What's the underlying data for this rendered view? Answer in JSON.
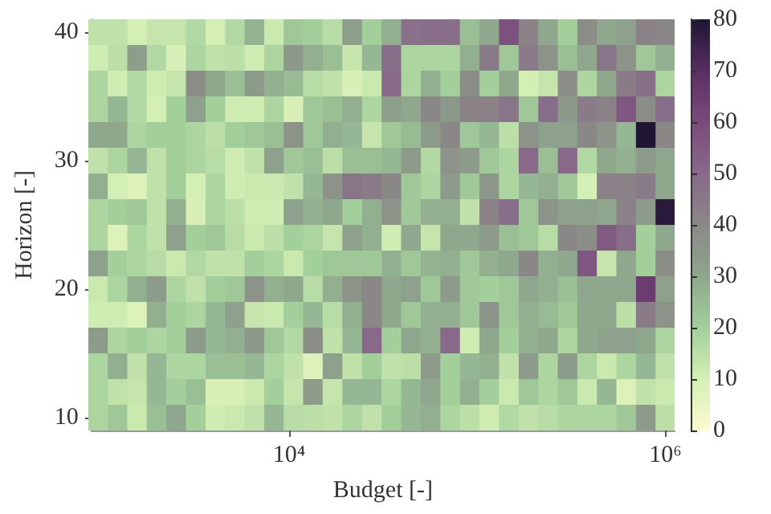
{
  "chart_data": {
    "type": "heatmap",
    "xlabel": "Budget [-]",
    "ylabel": "Horizon [-]",
    "log": "x",
    "xlim": [
      890,
      1120000
    ],
    "xticks": [
      {
        "value": 10000,
        "label": "10⁴"
      },
      {
        "value": 1000000,
        "label": "10⁶"
      }
    ],
    "ylim": [
      9,
      41
    ],
    "yticks": [
      10,
      20,
      30,
      40
    ],
    "clim": [
      0,
      80
    ],
    "cticks": [
      0,
      10,
      20,
      30,
      40,
      50,
      60,
      70,
      80
    ],
    "colors": [
      "#fdfccf",
      "#d4efb4",
      "#a3cf9b",
      "#8ea78d",
      "#8a8886",
      "#88698a",
      "#7a4b7a",
      "#5a2d63",
      "#1e1633"
    ],
    "x": [
      1000,
      1270,
      1610,
      2040,
      2590,
      3290,
      4180,
      5300,
      6720,
      8530,
      10800,
      13700,
      17400,
      22100,
      28100,
      35600,
      45200,
      57400,
      72800,
      92400,
      117000,
      149000,
      189000,
      240000,
      304000,
      386000,
      489000,
      621000,
      788000,
      1000000
    ],
    "y": [
      40,
      38,
      36,
      34,
      32,
      30,
      28,
      26,
      24,
      22,
      20,
      18,
      16,
      14,
      12,
      10
    ],
    "cells": [
      [
        14,
        14,
        10,
        13,
        13,
        17,
        10,
        17,
        27,
        12,
        22,
        20,
        16,
        33,
        20,
        28,
        47,
        48,
        48,
        24,
        30,
        58,
        42,
        30,
        20,
        38,
        30,
        32,
        42,
        40
      ],
      [
        11,
        15,
        33,
        17,
        9,
        18,
        14,
        15,
        11,
        18,
        35,
        28,
        24,
        13,
        26,
        48,
        18,
        18,
        18,
        28,
        44,
        22,
        44,
        36,
        24,
        30,
        46,
        36,
        22,
        28
      ],
      [
        18,
        11,
        17,
        11,
        13,
        38,
        30,
        24,
        34,
        28,
        25,
        16,
        14,
        9,
        12,
        50,
        18,
        28,
        20,
        38,
        20,
        30,
        10,
        13,
        38,
        18,
        30,
        44,
        48,
        18
      ],
      [
        18,
        26,
        17,
        10,
        20,
        32,
        20,
        11,
        11,
        18,
        9,
        22,
        24,
        28,
        18,
        33,
        30,
        40,
        35,
        42,
        42,
        46,
        22,
        48,
        35,
        44,
        42,
        56,
        38,
        48
      ],
      [
        30,
        30,
        18,
        20,
        20,
        18,
        15,
        20,
        22,
        24,
        36,
        22,
        28,
        26,
        13,
        22,
        25,
        34,
        40,
        22,
        26,
        15,
        36,
        32,
        32,
        40,
        36,
        26,
        80,
        40
      ],
      [
        14,
        18,
        26,
        14,
        20,
        18,
        16,
        11,
        14,
        32,
        22,
        24,
        15,
        24,
        24,
        26,
        34,
        17,
        36,
        34,
        22,
        18,
        50,
        24,
        50,
        17,
        30,
        28,
        34,
        30
      ],
      [
        28,
        10,
        8,
        14,
        20,
        10,
        18,
        11,
        12,
        12,
        14,
        26,
        36,
        46,
        44,
        40,
        22,
        18,
        34,
        22,
        35,
        18,
        26,
        28,
        22,
        10,
        42,
        42,
        44,
        30
      ],
      [
        18,
        20,
        22,
        14,
        28,
        9,
        18,
        15,
        11,
        11,
        32,
        28,
        30,
        20,
        28,
        36,
        22,
        28,
        28,
        14,
        42,
        48,
        22,
        36,
        32,
        32,
        30,
        42,
        34,
        78
      ],
      [
        18,
        8,
        18,
        14,
        32,
        20,
        22,
        16,
        12,
        15,
        20,
        18,
        13,
        32,
        28,
        11,
        30,
        13,
        30,
        30,
        34,
        24,
        22,
        16,
        40,
        38,
        55,
        48,
        20,
        30
      ],
      [
        32,
        20,
        18,
        16,
        12,
        17,
        14,
        14,
        20,
        18,
        12,
        20,
        22,
        22,
        22,
        28,
        22,
        27,
        28,
        22,
        28,
        30,
        40,
        28,
        30,
        56,
        13,
        30,
        20,
        38
      ],
      [
        12,
        18,
        28,
        34,
        18,
        14,
        20,
        22,
        36,
        28,
        30,
        16,
        28,
        36,
        40,
        30,
        32,
        22,
        34,
        22,
        20,
        22,
        30,
        28,
        24,
        30,
        30,
        30,
        65,
        32
      ],
      [
        11,
        11,
        8,
        28,
        20,
        18,
        26,
        32,
        13,
        12,
        20,
        26,
        16,
        28,
        40,
        30,
        22,
        28,
        28,
        22,
        36,
        22,
        28,
        25,
        22,
        30,
        30,
        15,
        44,
        36
      ],
      [
        34,
        18,
        20,
        18,
        20,
        34,
        26,
        28,
        35,
        22,
        17,
        38,
        14,
        26,
        50,
        20,
        30,
        28,
        50,
        11,
        30,
        20,
        28,
        30,
        18,
        30,
        32,
        32,
        30,
        18
      ],
      [
        18,
        28,
        14,
        26,
        18,
        18,
        24,
        24,
        26,
        18,
        14,
        8,
        32,
        14,
        20,
        14,
        15,
        34,
        20,
        26,
        28,
        14,
        34,
        18,
        34,
        18,
        12,
        18,
        26,
        14
      ],
      [
        18,
        14,
        13,
        26,
        20,
        24,
        9,
        9,
        12,
        20,
        13,
        34,
        13,
        26,
        26,
        18,
        26,
        30,
        20,
        28,
        20,
        12,
        22,
        18,
        22,
        12,
        26,
        8,
        14,
        12
      ],
      [
        18,
        22,
        12,
        24,
        30,
        20,
        11,
        12,
        14,
        26,
        16,
        15,
        14,
        18,
        14,
        20,
        26,
        28,
        18,
        15,
        11,
        17,
        14,
        16,
        18,
        18,
        18,
        22,
        34,
        15
      ]
    ]
  }
}
